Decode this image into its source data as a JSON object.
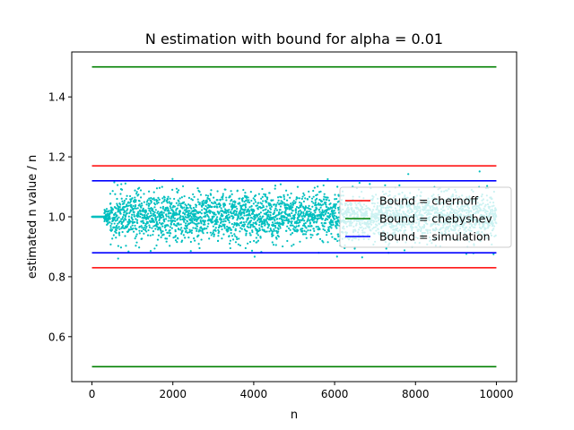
{
  "chart_data": {
    "type": "scatter",
    "title": "N estimation with bound for alpha = 0.01",
    "xlabel": "n",
    "ylabel": "estimated n value / n",
    "xlim": [
      -500,
      10500
    ],
    "ylim": [
      0.45,
      1.55
    ],
    "xticks": [
      0,
      2000,
      4000,
      6000,
      8000,
      10000
    ],
    "yticks": [
      0.6,
      0.8,
      1.0,
      1.2,
      1.4
    ],
    "xtick_labels": [
      "0",
      "2000",
      "4000",
      "6000",
      "8000",
      "10000"
    ],
    "ytick_labels": [
      "0.6",
      "0.8",
      "1.0",
      "1.2",
      "1.4"
    ],
    "grid": false,
    "legend_position": "center-right",
    "scatter": {
      "color": "#00bfbf",
      "x_range": [
        0,
        10000
      ],
      "center": 1.0,
      "typical_spread": [
        0.88,
        1.12
      ],
      "max_spread": [
        0.84,
        1.19
      ]
    },
    "bounds": [
      {
        "name": "Bound = chernoff",
        "color": "#ff0000",
        "lower": 0.83,
        "upper": 1.17
      },
      {
        "name": "Bound = chebyshev",
        "color": "#008000",
        "lower": 0.5,
        "upper": 1.5
      },
      {
        "name": "Bound = simulation",
        "color": "#0000ff",
        "lower": 0.88,
        "upper": 1.12
      }
    ]
  }
}
